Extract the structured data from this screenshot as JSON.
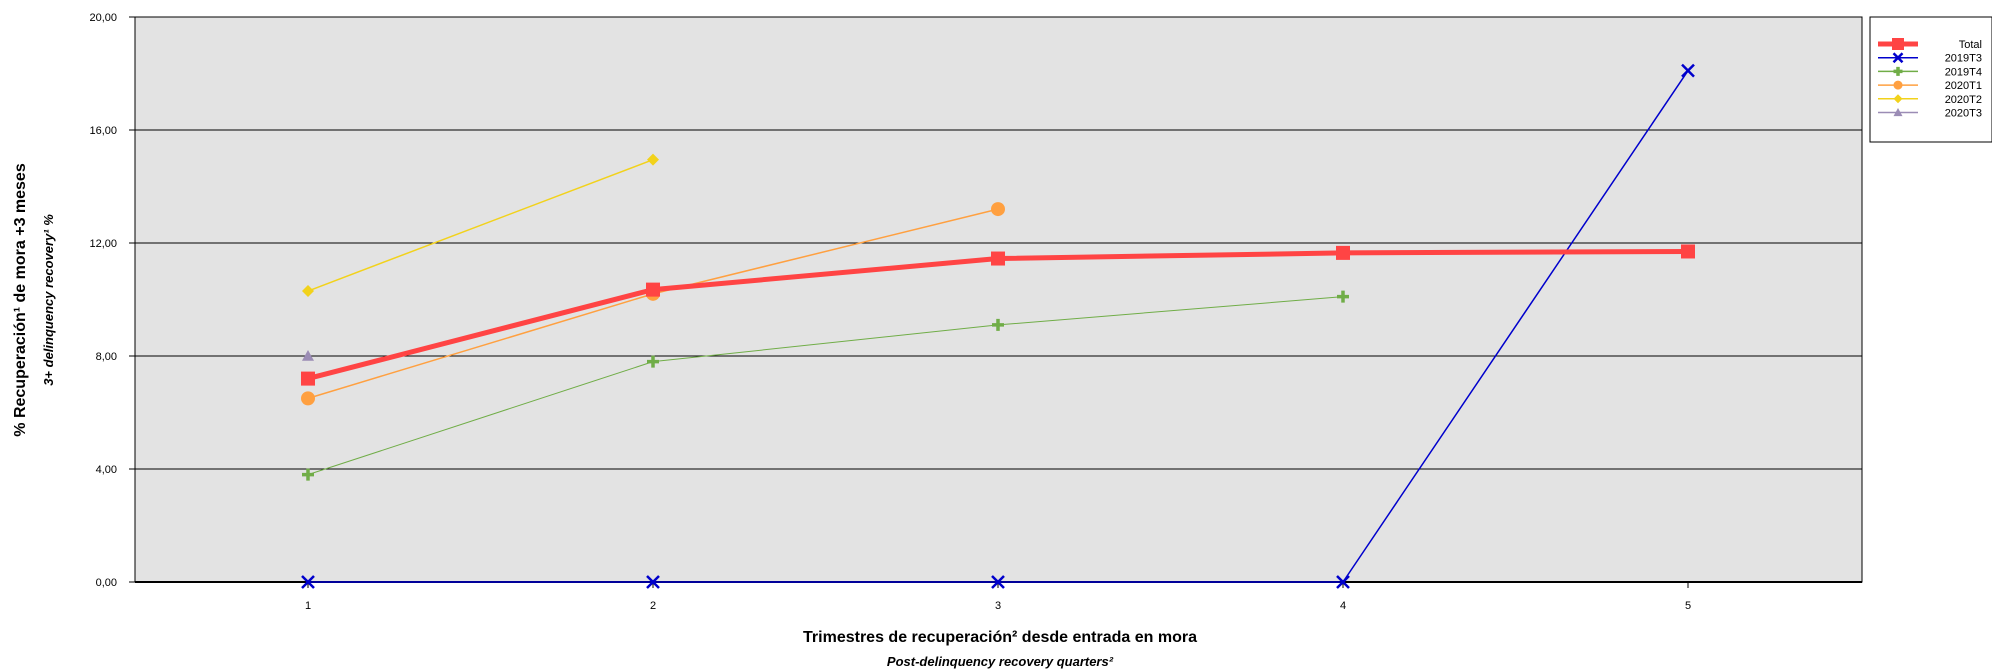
{
  "chart_data": {
    "type": "line",
    "x": [
      1,
      2,
      3,
      4,
      5
    ],
    "xlabel": "Trimestres de recuperación² desde entrada en mora",
    "xlabel_sub": "Post-delinquency recovery quarters²",
    "ylabel": "% Recuperación¹ de mora +3 meses",
    "ylabel_sub": "3+ delinquency recovery¹ %",
    "ylim": [
      0,
      20
    ],
    "yticks": [
      "0,00",
      "4,00",
      "8,00",
      "12,00",
      "16,00",
      "20,00"
    ],
    "xticks": [
      "1",
      "2",
      "3",
      "4",
      "5"
    ],
    "grid": true,
    "legend_position": "top-right",
    "series": [
      {
        "name": "Total",
        "color": "#ff4444",
        "marker": "square",
        "width": 5,
        "values": [
          7.2,
          10.35,
          11.45,
          11.65,
          11.7
        ]
      },
      {
        "name": "2019T3",
        "color": "#0000cc",
        "marker": "x",
        "width": 1.5,
        "values": [
          0.0,
          0.0,
          0.0,
          0.0,
          18.1
        ]
      },
      {
        "name": "2019T4",
        "color": "#70ad47",
        "marker": "plus",
        "width": 1,
        "values": [
          3.8,
          7.8,
          9.1,
          10.1,
          null
        ]
      },
      {
        "name": "2020T1",
        "color": "#ffa040",
        "marker": "circle",
        "width": 1.5,
        "values": [
          6.5,
          10.2,
          13.2,
          null,
          null
        ]
      },
      {
        "name": "2020T2",
        "color": "#f2d21b",
        "marker": "diamond",
        "width": 1.5,
        "values": [
          10.3,
          14.95,
          null,
          null,
          null
        ]
      },
      {
        "name": "2020T3",
        "color": "#9b8cb5",
        "marker": "triangle",
        "width": 1.5,
        "values": [
          8.0,
          null,
          null,
          null,
          null
        ]
      }
    ]
  }
}
